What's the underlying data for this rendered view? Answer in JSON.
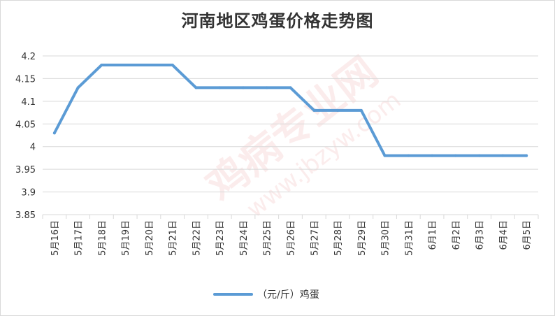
{
  "chart_data": {
    "type": "line",
    "title": "河南地区鸡蛋价格走势图",
    "categories": [
      "5月16日",
      "5月17日",
      "5月18日",
      "5月19日",
      "5月20日",
      "5月21日",
      "5月22日",
      "5月23日",
      "5月24日",
      "5月25日",
      "5月26日",
      "5月27日",
      "5月28日",
      "5月29日",
      "5月30日",
      "5月31日",
      "6月1日",
      "6月2日",
      "6月3日",
      "6月4日",
      "6月5日"
    ],
    "series": [
      {
        "name": "（元/斤）鸡蛋",
        "values": [
          4.03,
          4.13,
          4.18,
          4.18,
          4.18,
          4.18,
          4.13,
          4.13,
          4.13,
          4.13,
          4.13,
          4.08,
          4.08,
          4.08,
          3.98,
          3.98,
          3.98,
          3.98,
          3.98,
          3.98,
          3.98
        ]
      }
    ],
    "ylim": [
      3.85,
      4.2
    ],
    "yticks": [
      3.85,
      3.9,
      3.95,
      4,
      4.05,
      4.1,
      4.15,
      4.2
    ],
    "xlabel": "",
    "ylabel": "",
    "grid": true,
    "legend_position": "bottom",
    "colors": {
      "line": "#5b9bd5",
      "grid": "#d9d9d9",
      "text": "#333333"
    }
  },
  "watermark": {
    "text1": "鸡病专业网",
    "text2": "www.jbzyw.com"
  }
}
